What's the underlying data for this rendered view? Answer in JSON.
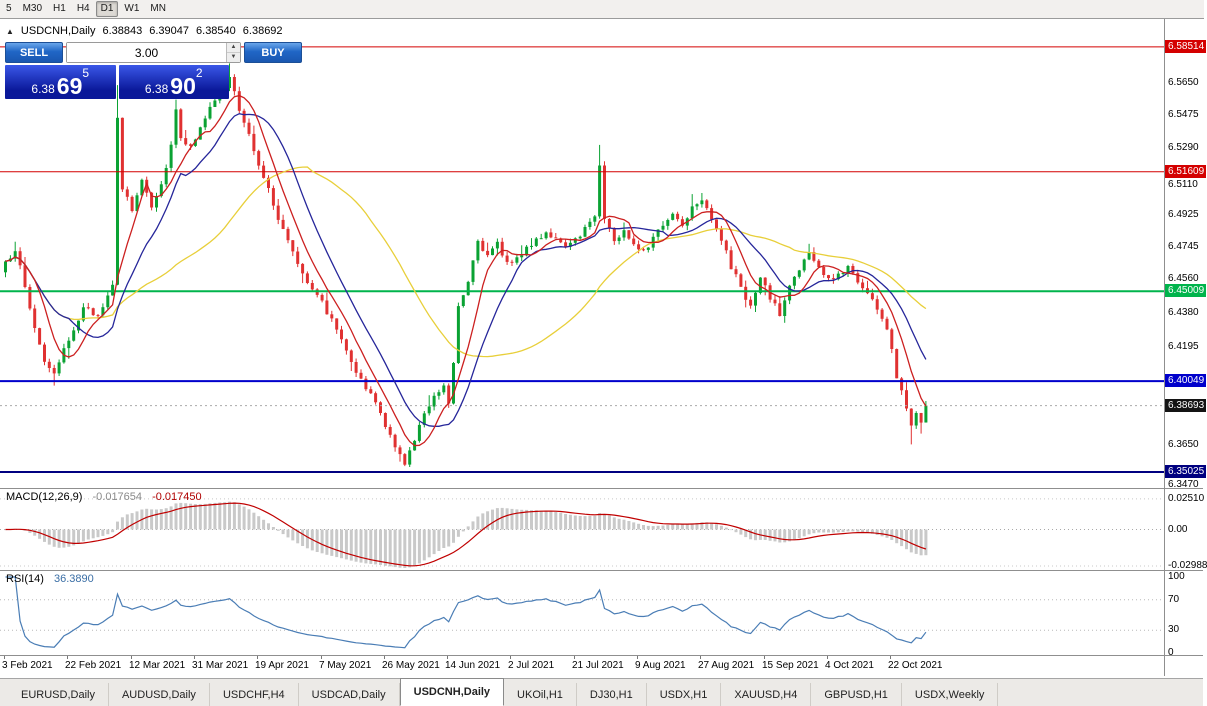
{
  "toolbar": {
    "timeframes": [
      {
        "label": "5",
        "active": false
      },
      {
        "label": "M30",
        "active": false
      },
      {
        "label": "H1",
        "active": false
      },
      {
        "label": "H4",
        "active": false
      },
      {
        "label": "D1",
        "active": true
      },
      {
        "label": "W1",
        "active": false
      },
      {
        "label": "MN",
        "active": false
      }
    ]
  },
  "chart_header": {
    "symbol": "USDCNH,Daily",
    "open": "6.38843",
    "high": "6.39047",
    "low": "6.38540",
    "close": "6.38692"
  },
  "one_click": {
    "sell_label": "SELL",
    "buy_label": "BUY",
    "volume": "3.00",
    "sell_price": {
      "prefix": "6.38",
      "big": "69",
      "sup": "5"
    },
    "buy_price": {
      "prefix": "6.38",
      "big": "90",
      "sup": "2"
    }
  },
  "price_axis": {
    "labels": [
      {
        "text": "6.5650",
        "price": 6.565
      },
      {
        "text": "6.5475",
        "price": 6.5475
      },
      {
        "text": "6.5290",
        "price": 6.529
      },
      {
        "text": "6.5110",
        "price": 6.511
      },
      {
        "text": "6.4925",
        "price": 6.4925
      },
      {
        "text": "6.4745",
        "price": 6.4745
      },
      {
        "text": "6.4560",
        "price": 6.456
      },
      {
        "text": "6.4380",
        "price": 6.438
      },
      {
        "text": "6.4195",
        "price": 6.4195
      },
      {
        "text": "6.3650",
        "price": 6.365
      },
      {
        "text": "6.3470",
        "price": 6.347
      }
    ]
  },
  "chart_data": {
    "type": "candlestick",
    "symbol": "USDCNH",
    "timeframe": "Daily",
    "price_range": [
      6.3414,
      6.6011
    ],
    "count": 190,
    "last_close": 6.38692,
    "up_color": "#0aa233",
    "down_color": "#e03131",
    "anchors": [
      [
        0,
        6.465
      ],
      [
        2,
        6.474
      ],
      [
        4,
        6.452
      ],
      [
        6,
        6.43
      ],
      [
        8,
        6.412
      ],
      [
        10,
        6.403
      ],
      [
        12,
        6.417
      ],
      [
        14,
        6.43
      ],
      [
        16,
        6.44
      ],
      [
        19,
        6.437
      ],
      [
        21,
        6.449
      ],
      [
        22,
        6.452
      ],
      [
        23,
        6.545
      ],
      [
        24,
        6.507
      ],
      [
        26,
        6.495
      ],
      [
        28,
        6.512
      ],
      [
        30,
        6.498
      ],
      [
        32,
        6.509
      ],
      [
        34,
        6.531
      ],
      [
        35,
        6.551
      ],
      [
        36,
        6.536
      ],
      [
        38,
        6.529
      ],
      [
        40,
        6.542
      ],
      [
        42,
        6.551
      ],
      [
        44,
        6.558
      ],
      [
        46,
        6.568
      ],
      [
        47,
        6.561
      ],
      [
        48,
        6.549
      ],
      [
        50,
        6.536
      ],
      [
        52,
        6.521
      ],
      [
        54,
        6.506
      ],
      [
        56,
        6.489
      ],
      [
        58,
        6.479
      ],
      [
        60,
        6.466
      ],
      [
        62,
        6.456
      ],
      [
        64,
        6.449
      ],
      [
        66,
        6.439
      ],
      [
        68,
        6.429
      ],
      [
        70,
        6.419
      ],
      [
        72,
        6.406
      ],
      [
        74,
        6.396
      ],
      [
        76,
        6.389
      ],
      [
        78,
        6.376
      ],
      [
        80,
        6.363
      ],
      [
        82,
        6.356
      ],
      [
        84,
        6.367
      ],
      [
        86,
        6.383
      ],
      [
        88,
        6.393
      ],
      [
        90,
        6.398
      ],
      [
        91,
        6.389
      ],
      [
        92,
        6.411
      ],
      [
        93,
        6.443
      ],
      [
        95,
        6.456
      ],
      [
        97,
        6.479
      ],
      [
        99,
        6.469
      ],
      [
        101,
        6.476
      ],
      [
        103,
        6.466
      ],
      [
        105,
        6.469
      ],
      [
        107,
        6.473
      ],
      [
        109,
        6.479
      ],
      [
        111,
        6.483
      ],
      [
        113,
        6.479
      ],
      [
        115,
        6.473
      ],
      [
        117,
        6.479
      ],
      [
        119,
        6.485
      ],
      [
        121,
        6.492
      ],
      [
        122,
        6.521
      ],
      [
        123,
        6.491
      ],
      [
        125,
        6.478
      ],
      [
        127,
        6.483
      ],
      [
        129,
        6.477
      ],
      [
        131,
        6.473
      ],
      [
        133,
        6.479
      ],
      [
        135,
        6.487
      ],
      [
        137,
        6.493
      ],
      [
        139,
        6.487
      ],
      [
        141,
        6.497
      ],
      [
        143,
        6.502
      ],
      [
        145,
        6.491
      ],
      [
        147,
        6.479
      ],
      [
        149,
        6.463
      ],
      [
        151,
        6.453
      ],
      [
        153,
        6.441
      ],
      [
        155,
        6.457
      ],
      [
        157,
        6.447
      ],
      [
        159,
        6.437
      ],
      [
        161,
        6.453
      ],
      [
        163,
        6.463
      ],
      [
        165,
        6.471
      ],
      [
        167,
        6.463
      ],
      [
        169,
        6.456
      ],
      [
        171,
        6.459
      ],
      [
        173,
        6.464
      ],
      [
        175,
        6.456
      ],
      [
        177,
        6.449
      ],
      [
        179,
        6.441
      ],
      [
        181,
        6.429
      ],
      [
        182,
        6.417
      ],
      [
        183,
        6.403
      ],
      [
        184,
        6.396
      ],
      [
        185,
        6.387
      ],
      [
        186,
        6.377
      ],
      [
        187,
        6.383
      ],
      [
        188,
        6.379
      ],
      [
        189,
        6.38692
      ]
    ],
    "wick_overrides": [
      {
        "i": 10,
        "l": 6.398
      },
      {
        "i": 23,
        "h": 6.564
      },
      {
        "i": 35,
        "h": 6.556
      },
      {
        "i": 45,
        "h": 6.571
      },
      {
        "i": 46,
        "h": 6.576
      },
      {
        "i": 81,
        "l": 6.356
      },
      {
        "i": 82,
        "l": 6.3535
      },
      {
        "i": 122,
        "h": 6.531
      },
      {
        "i": 186,
        "l": 6.3655
      }
    ],
    "moving_averages": [
      {
        "period": 40,
        "color": "#e8cf3a"
      },
      {
        "period": 14,
        "color": "#26269a"
      },
      {
        "period": 7,
        "color": "#cc2020"
      }
    ],
    "hlines": [
      {
        "price": 6.58514,
        "label": "6.58514",
        "color": "#d40000",
        "width": 1
      },
      {
        "price": 6.51609,
        "label": "6.51609",
        "color": "#d40000",
        "width": 1
      },
      {
        "price": 6.45009,
        "label": "6.45009",
        "color": "#00b44c",
        "width": 2
      },
      {
        "price": 6.40049,
        "label": "6.40049",
        "color": "#0000cc",
        "width": 2
      },
      {
        "price": 6.35025,
        "label": "6.35025",
        "color": "#000080",
        "width": 2
      }
    ],
    "current_price": {
      "price": 6.38693,
      "label": "6.38693",
      "color": "#141414"
    },
    "dates": [
      "3 Feb 2021",
      "22 Feb 2021",
      "12 Mar 2021",
      "31 Mar 2021",
      "19 Apr 2021",
      "7 May 2021",
      "26 May 2021",
      "14 Jun 2021",
      "2 Jul 2021",
      "21 Jul 2021",
      "9 Aug 2021",
      "27 Aug 2021",
      "15 Sep 2021",
      "4 Oct 2021",
      "22 Oct 2021"
    ],
    "macd": {
      "label": "MACD(12,26,9)",
      "value_main": "-0.017654",
      "value_signal": "-0.017450",
      "params": [
        12,
        26,
        9
      ],
      "range": [
        -0.0332,
        0.0332
      ],
      "axis": [
        {
          "text": "0.02510",
          "v": 0.0251
        },
        {
          "text": "0.00",
          "v": 0
        },
        {
          "text": "-0.02988",
          "v": -0.02988
        }
      ],
      "hist_color": "#c9c9c9",
      "signal_color": "#c00000"
    },
    "rsi": {
      "label": "RSI(14)",
      "value": "36.3890",
      "period": 14,
      "range": [
        -2.6,
        107.9
      ],
      "axis": [
        {
          "text": "100",
          "v": 100
        },
        {
          "text": "70",
          "v": 70
        },
        {
          "text": "30",
          "v": 30
        },
        {
          "text": "0",
          "v": 0
        }
      ],
      "levels": [
        70,
        30
      ],
      "line_color": "#4a7db5"
    }
  },
  "tabs": [
    {
      "label": "EURUSD,Daily",
      "active": false
    },
    {
      "label": "AUDUSD,Daily",
      "active": false
    },
    {
      "label": "USDCHF,H4",
      "active": false
    },
    {
      "label": "USDCAD,Daily",
      "active": false
    },
    {
      "label": "USDCNH,Daily",
      "active": true
    },
    {
      "label": "UKOil,H1",
      "active": false
    },
    {
      "label": "DJ30,H1",
      "active": false
    },
    {
      "label": "USDX,H1",
      "active": false
    },
    {
      "label": "XAUUSD,H4",
      "active": false
    },
    {
      "label": "GBPUSD,H1",
      "active": false
    },
    {
      "label": "USDX,Weekly",
      "active": false
    }
  ]
}
